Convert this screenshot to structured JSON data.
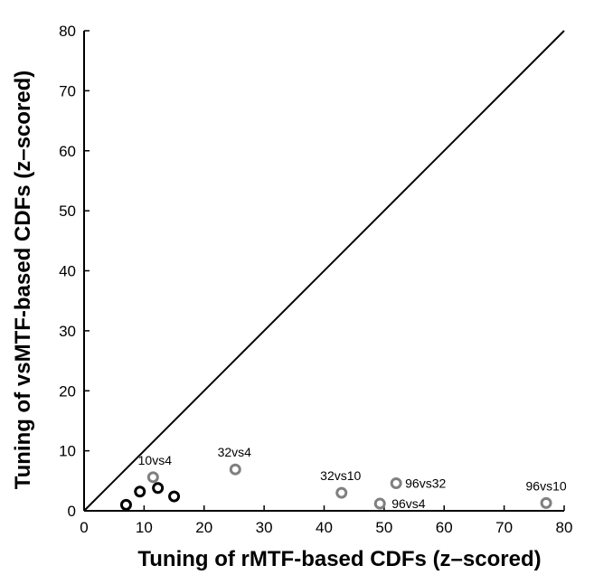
{
  "chart_data": {
    "type": "scatter",
    "title": "",
    "xlabel": "Tuning of rMTF-based CDFs (z–scored)",
    "ylabel": "Tuning of vsMTF-based CDFs (z–scored)",
    "xlim": [
      0,
      80
    ],
    "ylim": [
      0,
      80
    ],
    "xticks": [
      0,
      10,
      20,
      30,
      40,
      50,
      60,
      70,
      80
    ],
    "yticks": [
      0,
      10,
      20,
      30,
      40,
      50,
      60,
      70,
      80
    ],
    "grid": false,
    "legend": "none",
    "reference_line": {
      "x": [
        0,
        80
      ],
      "y": [
        0,
        80
      ]
    },
    "series": [
      {
        "color": "#000000",
        "points": [
          {
            "x": 7,
            "y": 1
          },
          {
            "x": 9.3,
            "y": 3.2
          },
          {
            "x": 12.3,
            "y": 3.8
          },
          {
            "x": 15,
            "y": 2.4
          }
        ]
      },
      {
        "color": "#808080",
        "points": [
          {
            "x": 11.5,
            "y": 5.6,
            "label": "10vs4"
          },
          {
            "x": 25.2,
            "y": 6.9,
            "label": "32vs4"
          },
          {
            "x": 42.9,
            "y": 3.0,
            "label": "32vs10"
          },
          {
            "x": 52,
            "y": 4.6,
            "label": "96vs32"
          },
          {
            "x": 49.3,
            "y": 1.2,
            "label": "96vs4"
          },
          {
            "x": 77,
            "y": 1.3,
            "label": "96vs10"
          }
        ]
      }
    ]
  }
}
